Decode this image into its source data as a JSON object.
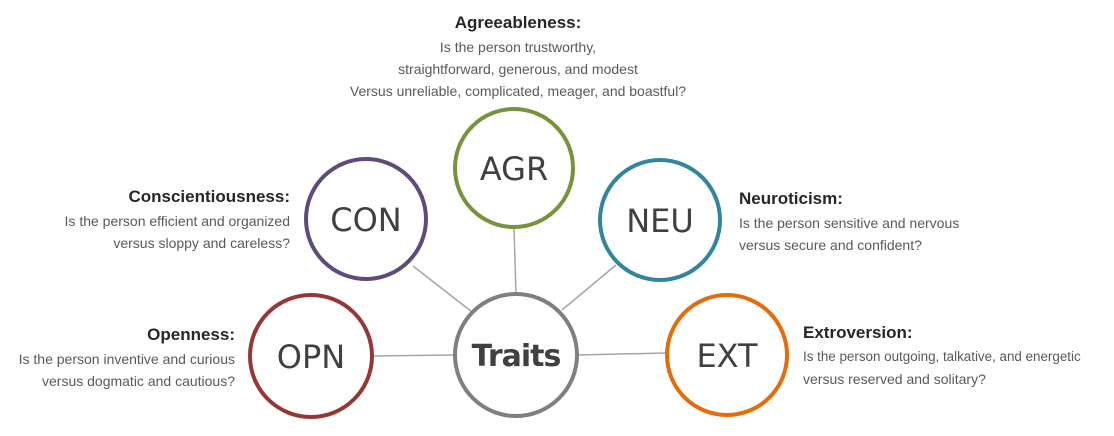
{
  "center": {
    "label": "Traits",
    "color": "#7f7f7f"
  },
  "traits": [
    {
      "key": "agr",
      "abbr": "AGR",
      "color": "#77933c",
      "title": "Agreeableness:",
      "lines": [
        "Is the person trustworthy,",
        "straightforward, generous, and modest",
        "Versus unreliable, complicated, meager, and boastful?"
      ]
    },
    {
      "key": "con",
      "abbr": "CON",
      "color": "#604a7b",
      "title": "Conscientiousness:",
      "lines": [
        "Is the person efficient and organized",
        "versus sloppy and careless?"
      ]
    },
    {
      "key": "neu",
      "abbr": "NEU",
      "color": "#31859c",
      "title": "Neuroticism:",
      "lines": [
        "Is the person sensitive and nervous",
        "versus secure and confident?"
      ]
    },
    {
      "key": "opn",
      "abbr": "OPN",
      "color": "#953735",
      "title": "Openness:",
      "lines": [
        "Is the person inventive and curious",
        "versus dogmatic and cautious?"
      ]
    },
    {
      "key": "ext",
      "abbr": "EXT",
      "color": "#e46c0a",
      "title": "Extroversion:",
      "lines": [
        "Is the person outgoing, talkative, and energetic",
        "versus reserved and solitary?"
      ]
    }
  ]
}
